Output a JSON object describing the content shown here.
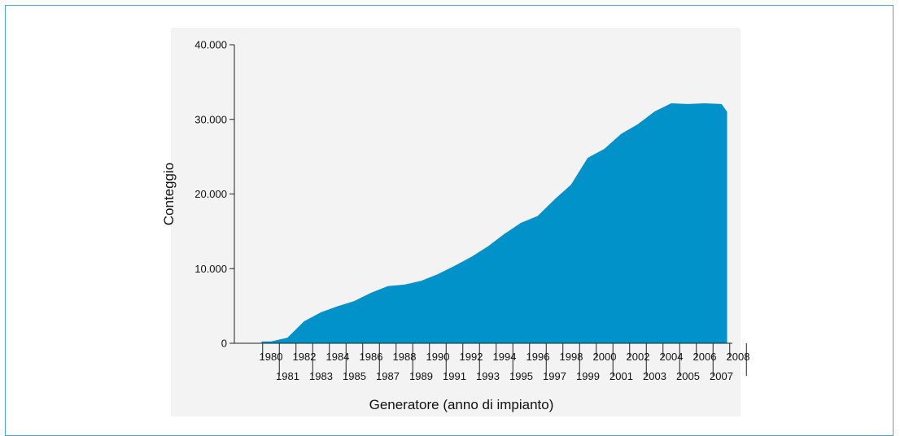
{
  "chart_data": {
    "type": "area",
    "title": "",
    "xlabel": "Generatore (anno di impianto)",
    "ylabel": "Conteggio",
    "ylim": [
      0,
      40000
    ],
    "yticks": [
      "0",
      "10.000",
      "20.000",
      "30.000",
      "40.000"
    ],
    "ytick_values": [
      0,
      10000,
      20000,
      30000,
      40000
    ],
    "grid": false,
    "legend": "none",
    "fill_color": "#0092c8",
    "series": [
      {
        "x": [
          1980,
          1981,
          1982,
          1983,
          1984,
          1985,
          1986,
          1987,
          1988,
          1989,
          1990,
          1991,
          1992,
          1993,
          1994,
          1995,
          1996,
          1997,
          1998,
          1999,
          2000,
          2001,
          2002,
          2003,
          2004,
          2005,
          2006,
          2007,
          2008
        ],
        "values": [
          200,
          700,
          2900,
          4100,
          4900,
          5600,
          6700,
          7600,
          7800,
          8300,
          9200,
          10300,
          11500,
          12900,
          14600,
          16100,
          17000,
          19200,
          21200,
          24800,
          26000,
          28000,
          29300,
          31000,
          32100,
          32000,
          32100,
          32000,
          31000
        ]
      }
    ],
    "xticks_row1": [
      "1980",
      "1982",
      "1984",
      "1986",
      "1988",
      "1990",
      "1992",
      "1994",
      "1996",
      "1998",
      "2000",
      "2002",
      "2004",
      "2006",
      "2008"
    ],
    "xticks_row2": [
      "1981",
      "1983",
      "1985",
      "1987",
      "1989",
      "1991",
      "1993",
      "1995",
      "1997",
      "1999",
      "2001",
      "2003",
      "2005",
      "2007"
    ]
  }
}
